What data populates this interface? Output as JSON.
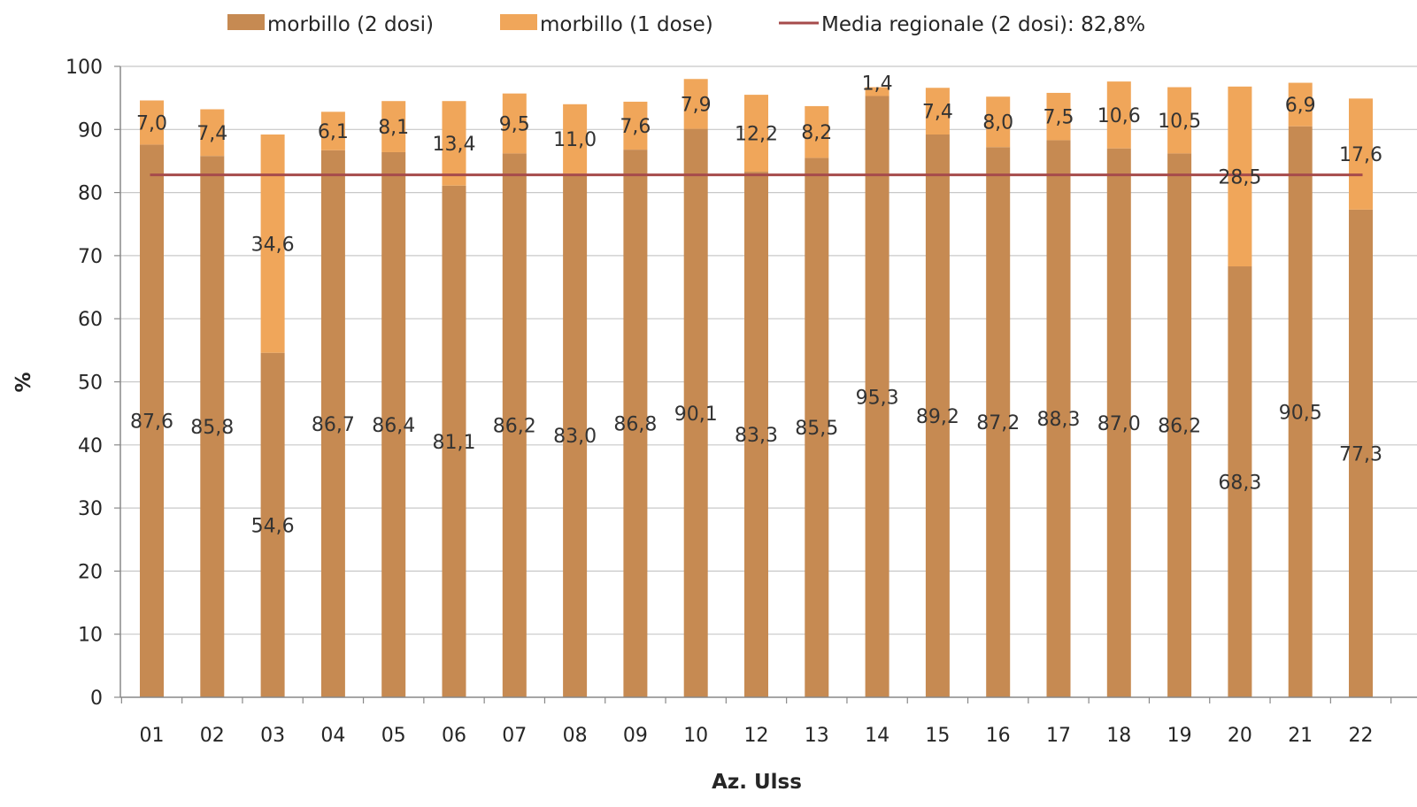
{
  "chart_data": {
    "type": "bar",
    "stacked": true,
    "categories": [
      "01",
      "02",
      "03",
      "04",
      "05",
      "06",
      "07",
      "08",
      "09",
      "10",
      "12",
      "13",
      "14",
      "15",
      "16",
      "17",
      "18",
      "19",
      "20",
      "21",
      "22"
    ],
    "series": [
      {
        "name": "morbillo (2 dosi)",
        "color": "#c68a52",
        "values": [
          87.6,
          85.8,
          54.6,
          86.7,
          86.4,
          81.1,
          86.2,
          83.0,
          86.8,
          90.1,
          83.3,
          85.5,
          95.3,
          89.2,
          87.2,
          88.3,
          87.0,
          86.2,
          68.3,
          90.5,
          77.3
        ],
        "labels": [
          "87,6",
          "85,8",
          "54,6",
          "86,7",
          "86,4",
          "81,1",
          "86,2",
          "83,0",
          "86,8",
          "90,1",
          "83,3",
          "85,5",
          "95,3",
          "89,2",
          "87,2",
          "88,3",
          "87,0",
          "86,2",
          "68,3",
          "90,5",
          "77,3"
        ]
      },
      {
        "name": "morbillo (1 dose)",
        "color": "#f0a65a",
        "values": [
          7.0,
          7.4,
          34.6,
          6.1,
          8.1,
          13.4,
          9.5,
          11.0,
          7.6,
          7.9,
          12.2,
          8.2,
          1.4,
          7.4,
          8.0,
          7.5,
          10.6,
          10.5,
          28.5,
          6.9,
          17.6
        ],
        "labels": [
          "7,0",
          "7,4",
          "34,6",
          "6,1",
          "8,1",
          "13,4",
          "9,5",
          "11,0",
          "7,6",
          "7,9",
          "12,2",
          "8,2",
          "1,4",
          "7,4",
          "8,0",
          "7,5",
          "10,6",
          "10,5",
          "28,5",
          "6,9",
          "17,6"
        ]
      }
    ],
    "reference_line": {
      "name": "Media regionale (2 dosi): 82,8%",
      "value": 82.8,
      "color": "#a64b4b"
    },
    "legend_labels": [
      "morbillo (2 dosi)",
      "morbillo (1 dose)",
      "Media regionale (2 dosi): 82,8%"
    ],
    "xlabel": "Az. Ulss",
    "ylabel": "%",
    "ylim": [
      0,
      100
    ],
    "yticks": [
      "0",
      "10",
      "20",
      "30",
      "40",
      "50",
      "60",
      "70",
      "80",
      "90",
      "100"
    ],
    "grid": true,
    "legend_position": "top"
  }
}
